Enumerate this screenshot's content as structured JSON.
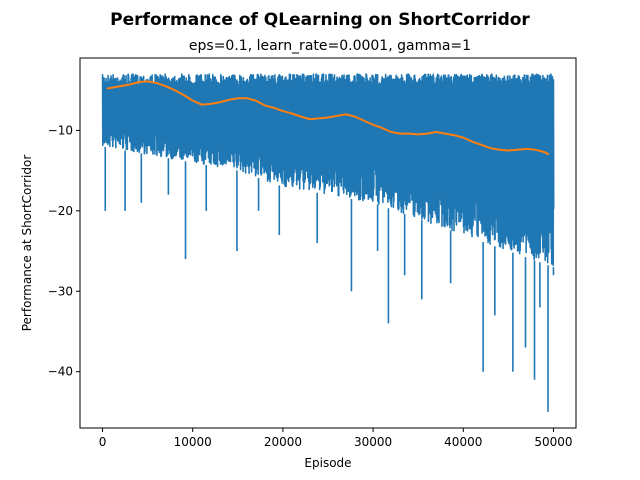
{
  "chart_data": {
    "type": "line",
    "title": "Performance of QLearning on ShortCorridor",
    "subtitle": "eps=0.1, learn_rate=0.0001, gamma=1",
    "xlabel": "Episode",
    "ylabel": "Performance at ShortCorridor",
    "xlim": [
      -2500,
      52500
    ],
    "ylim": [
      -47,
      -1
    ],
    "x_ticks": [
      0,
      10000,
      20000,
      30000,
      40000,
      50000
    ],
    "y_ticks": [
      -40,
      -30,
      -20,
      -10
    ],
    "grid": false,
    "legend": "none",
    "series": [
      {
        "color": "#1f77b4",
        "kind": "per-episode raw performance (dense band)",
        "x": [
          0,
          5000,
          10000,
          15000,
          20000,
          25000,
          30000,
          35000,
          40000,
          45000,
          50000
        ],
        "upper": [
          -3,
          -3,
          -3,
          -3,
          -3,
          -3,
          -3,
          -3,
          -3,
          -3,
          -3
        ],
        "lower_typical": [
          -12,
          -13,
          -14,
          -15,
          -17,
          -18,
          -19,
          -21,
          -23,
          -25,
          -27
        ],
        "spikes": [
          {
            "x": 300,
            "y": -20
          },
          {
            "x": 2500,
            "y": -20
          },
          {
            "x": 4300,
            "y": -19
          },
          {
            "x": 7300,
            "y": -18
          },
          {
            "x": 9200,
            "y": -26
          },
          {
            "x": 11500,
            "y": -20
          },
          {
            "x": 14900,
            "y": -25
          },
          {
            "x": 17300,
            "y": -20
          },
          {
            "x": 19600,
            "y": -23
          },
          {
            "x": 23800,
            "y": -24
          },
          {
            "x": 27600,
            "y": -30
          },
          {
            "x": 30500,
            "y": -25
          },
          {
            "x": 31700,
            "y": -34
          },
          {
            "x": 33500,
            "y": -28
          },
          {
            "x": 35400,
            "y": -31
          },
          {
            "x": 38600,
            "y": -29
          },
          {
            "x": 42200,
            "y": -40
          },
          {
            "x": 43500,
            "y": -33
          },
          {
            "x": 45500,
            "y": -40
          },
          {
            "x": 46900,
            "y": -37
          },
          {
            "x": 47900,
            "y": -41
          },
          {
            "x": 48500,
            "y": -32
          },
          {
            "x": 49400,
            "y": -45
          },
          {
            "x": 50000,
            "y": -28
          }
        ]
      },
      {
        "color": "#ff7f0e",
        "kind": "moving average",
        "x": [
          500,
          1000,
          2000,
          3000,
          4000,
          5000,
          6000,
          7000,
          8000,
          9000,
          10000,
          11000,
          12000,
          13000,
          14000,
          15000,
          16000,
          17000,
          18000,
          19000,
          20000,
          21000,
          22000,
          23000,
          24000,
          25000,
          26000,
          27000,
          28000,
          29000,
          30000,
          31000,
          32000,
          33000,
          34000,
          35000,
          36000,
          37000,
          38000,
          39000,
          40000,
          41000,
          42000,
          43000,
          44000,
          45000,
          46000,
          47000,
          48000,
          49000,
          49500
        ],
        "y": [
          -4.8,
          -4.7,
          -4.5,
          -4.3,
          -4.0,
          -3.9,
          -4.1,
          -4.5,
          -5.0,
          -5.6,
          -6.3,
          -6.8,
          -6.7,
          -6.5,
          -6.2,
          -6.0,
          -6.0,
          -6.3,
          -6.9,
          -7.2,
          -7.6,
          -7.9,
          -8.3,
          -8.6,
          -8.5,
          -8.4,
          -8.2,
          -8.0,
          -8.3,
          -8.8,
          -9.3,
          -9.7,
          -10.2,
          -10.4,
          -10.4,
          -10.5,
          -10.4,
          -10.2,
          -10.4,
          -10.6,
          -10.9,
          -11.4,
          -11.8,
          -12.2,
          -12.4,
          -12.5,
          -12.4,
          -12.3,
          -12.4,
          -12.7,
          -13.0
        ]
      }
    ]
  }
}
